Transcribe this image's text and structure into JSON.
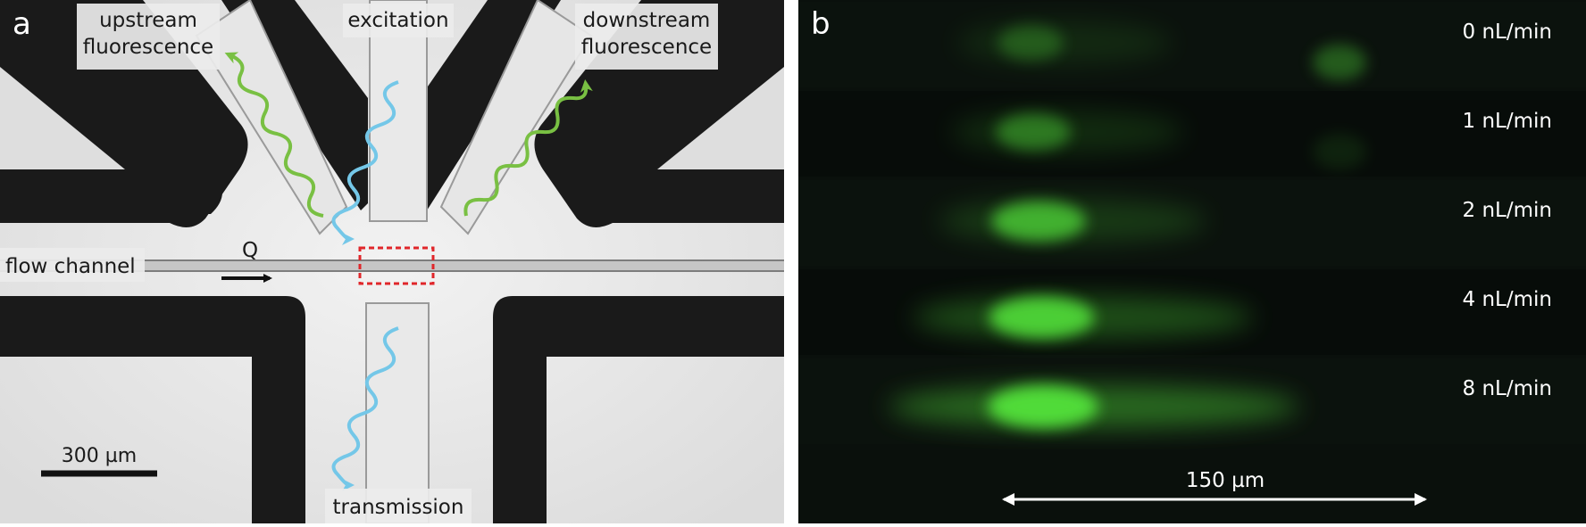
{
  "panel_a": {
    "letter": "a",
    "labels": {
      "upstream_line1": "upstream",
      "upstream_line2": "fluorescence",
      "excitation": "excitation",
      "downstream_line1": "downstream",
      "downstream_line2": "fluorescence",
      "flow_channel": "flow channel",
      "flow_symbol": "Q",
      "transmission": "transmission"
    },
    "scale_bar_label": "300 µm",
    "colors": {
      "fluorescence_wave": "#79c043",
      "excitation_wave": "#74c7e8",
      "roi_box": "#e0262a"
    }
  },
  "panel_b": {
    "letter": "b",
    "flow_rates": [
      {
        "label": "0 nL/min",
        "intensity": 0.3,
        "tail": 0.2,
        "secondary": 0.35
      },
      {
        "label": "1 nL/min",
        "intensity": 0.45,
        "tail": 0.25,
        "secondary": 0.1
      },
      {
        "label": "2 nL/min",
        "intensity": 0.75,
        "tail": 0.35,
        "secondary": 0.0
      },
      {
        "label": "4 nL/min",
        "intensity": 0.92,
        "tail": 0.55,
        "secondary": 0.0
      },
      {
        "label": "8 nL/min",
        "intensity": 1.0,
        "tail": 0.75,
        "secondary": 0.0
      }
    ],
    "scale_bar_label": "150 µm",
    "colors": {
      "fluorescence": "#52e23a"
    }
  }
}
